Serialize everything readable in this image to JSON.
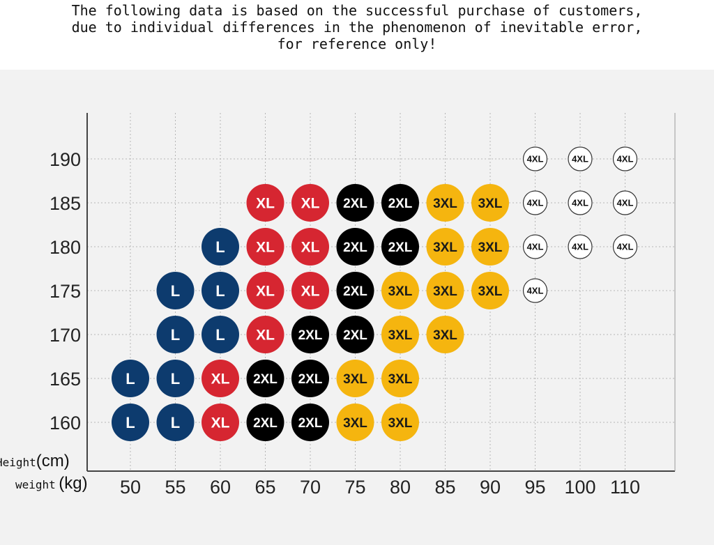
{
  "notice": {
    "line1": "The following data is based on the successful purchase of customers,",
    "line2": "due to individual differences in the phenomenon of inevitable error,",
    "line3": "for reference only!"
  },
  "chart_data": {
    "type": "table",
    "ylabel_name": "Height",
    "ylabel_unit": "(cm)",
    "xlabel_name": "weight",
    "xlabel_unit": "(kg)",
    "x_ticks": [
      "50",
      "55",
      "60",
      "65",
      "70",
      "75",
      "80",
      "85",
      "90",
      "95",
      "100",
      "110"
    ],
    "y_ticks": [
      "190",
      "185",
      "180",
      "175",
      "170",
      "165",
      "160"
    ],
    "grid": true,
    "sizes": {
      "L": {
        "fill": "#0d3b6e",
        "text": "#ffffff"
      },
      "XL": {
        "fill": "#d62631",
        "text": "#ffffff"
      },
      "2XL": {
        "fill": "#000000",
        "text": "#ffffff"
      },
      "3XL": {
        "fill": "#f5b50f",
        "text": "#1a1a1a"
      },
      "4XL": {
        "fill": "#ffffff",
        "text": "#111111"
      }
    },
    "cells": [
      {
        "height": "190",
        "weight": "95",
        "size": "4XL"
      },
      {
        "height": "190",
        "weight": "100",
        "size": "4XL"
      },
      {
        "height": "190",
        "weight": "110",
        "size": "4XL"
      },
      {
        "height": "185",
        "weight": "65",
        "size": "XL"
      },
      {
        "height": "185",
        "weight": "70",
        "size": "XL"
      },
      {
        "height": "185",
        "weight": "75",
        "size": "2XL"
      },
      {
        "height": "185",
        "weight": "80",
        "size": "2XL"
      },
      {
        "height": "185",
        "weight": "85",
        "size": "3XL"
      },
      {
        "height": "185",
        "weight": "90",
        "size": "3XL"
      },
      {
        "height": "185",
        "weight": "95",
        "size": "4XL"
      },
      {
        "height": "185",
        "weight": "100",
        "size": "4XL"
      },
      {
        "height": "185",
        "weight": "110",
        "size": "4XL"
      },
      {
        "height": "180",
        "weight": "60",
        "size": "L"
      },
      {
        "height": "180",
        "weight": "65",
        "size": "XL"
      },
      {
        "height": "180",
        "weight": "70",
        "size": "XL"
      },
      {
        "height": "180",
        "weight": "75",
        "size": "2XL"
      },
      {
        "height": "180",
        "weight": "80",
        "size": "2XL"
      },
      {
        "height": "180",
        "weight": "85",
        "size": "3XL"
      },
      {
        "height": "180",
        "weight": "90",
        "size": "3XL"
      },
      {
        "height": "180",
        "weight": "95",
        "size": "4XL"
      },
      {
        "height": "180",
        "weight": "100",
        "size": "4XL"
      },
      {
        "height": "180",
        "weight": "110",
        "size": "4XL"
      },
      {
        "height": "175",
        "weight": "55",
        "size": "L"
      },
      {
        "height": "175",
        "weight": "60",
        "size": "L"
      },
      {
        "height": "175",
        "weight": "65",
        "size": "XL"
      },
      {
        "height": "175",
        "weight": "70",
        "size": "XL"
      },
      {
        "height": "175",
        "weight": "75",
        "size": "2XL"
      },
      {
        "height": "175",
        "weight": "80",
        "size": "3XL"
      },
      {
        "height": "175",
        "weight": "85",
        "size": "3XL"
      },
      {
        "height": "175",
        "weight": "90",
        "size": "3XL"
      },
      {
        "height": "175",
        "weight": "95",
        "size": "4XL"
      },
      {
        "height": "170",
        "weight": "55",
        "size": "L"
      },
      {
        "height": "170",
        "weight": "60",
        "size": "L"
      },
      {
        "height": "170",
        "weight": "65",
        "size": "XL"
      },
      {
        "height": "170",
        "weight": "70",
        "size": "2XL"
      },
      {
        "height": "170",
        "weight": "75",
        "size": "2XL"
      },
      {
        "height": "170",
        "weight": "80",
        "size": "3XL"
      },
      {
        "height": "170",
        "weight": "85",
        "size": "3XL"
      },
      {
        "height": "165",
        "weight": "50",
        "size": "L"
      },
      {
        "height": "165",
        "weight": "55",
        "size": "L"
      },
      {
        "height": "165",
        "weight": "60",
        "size": "XL"
      },
      {
        "height": "165",
        "weight": "65",
        "size": "2XL"
      },
      {
        "height": "165",
        "weight": "70",
        "size": "2XL"
      },
      {
        "height": "165",
        "weight": "75",
        "size": "3XL"
      },
      {
        "height": "165",
        "weight": "80",
        "size": "3XL"
      },
      {
        "height": "160",
        "weight": "50",
        "size": "L"
      },
      {
        "height": "160",
        "weight": "55",
        "size": "L"
      },
      {
        "height": "160",
        "weight": "60",
        "size": "XL"
      },
      {
        "height": "160",
        "weight": "65",
        "size": "2XL"
      },
      {
        "height": "160",
        "weight": "70",
        "size": "2XL"
      },
      {
        "height": "160",
        "weight": "75",
        "size": "3XL"
      },
      {
        "height": "160",
        "weight": "80",
        "size": "3XL"
      }
    ]
  }
}
